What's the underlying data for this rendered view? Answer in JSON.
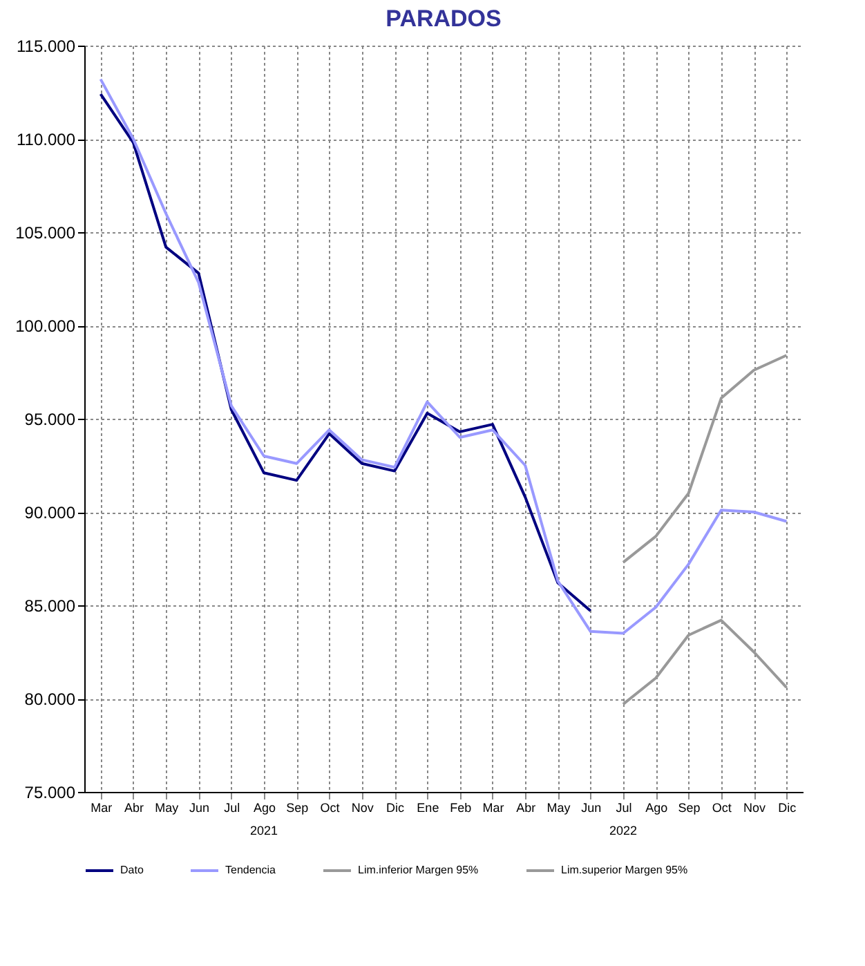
{
  "chart_data": {
    "type": "line",
    "title": "PARADOS",
    "categories": [
      "Mar",
      "Abr",
      "May",
      "Jun",
      "Jul",
      "Ago",
      "Sep",
      "Oct",
      "Nov",
      "Dic",
      "Ene",
      "Feb",
      "Mar",
      "Abr",
      "May",
      "Jun",
      "Jul",
      "Ago",
      "Sep",
      "Oct",
      "Nov",
      "Dic"
    ],
    "series": [
      {
        "name": "Dato",
        "color": "#000080",
        "values": [
          112400,
          109800,
          104200,
          102800,
          95500,
          92100,
          91700,
          94200,
          92600,
          92200,
          95300,
          94300,
          94700,
          90800,
          86200,
          84700,
          null,
          null,
          null,
          null,
          null,
          null
        ]
      },
      {
        "name": "Tendencia",
        "color": "#9999ff",
        "values": [
          113200,
          110000,
          106000,
          102300,
          95700,
          93000,
          92600,
          94400,
          92800,
          92400,
          95900,
          94000,
          94400,
          92500,
          86300,
          83600,
          83500,
          84900,
          87200,
          90100,
          90000,
          89500
        ]
      },
      {
        "name": "Lim.inferior Margen 95%",
        "color": "#999999",
        "values": [
          null,
          null,
          null,
          null,
          null,
          null,
          null,
          null,
          null,
          null,
          null,
          null,
          null,
          null,
          null,
          null,
          79700,
          81100,
          83400,
          84200,
          82500,
          80600
        ]
      },
      {
        "name": "Lim.superior Margen 95%",
        "color": "#999999",
        "values": [
          null,
          null,
          null,
          null,
          null,
          null,
          null,
          null,
          null,
          null,
          null,
          null,
          null,
          null,
          null,
          null,
          87300,
          88700,
          91000,
          96100,
          97600,
          98400
        ]
      }
    ],
    "ylim": [
      75000,
      115000
    ],
    "yticks": [
      {
        "value": 75000,
        "label": "75.000"
      },
      {
        "value": 80000,
        "label": "80.000"
      },
      {
        "value": 85000,
        "label": "85.000"
      },
      {
        "value": 90000,
        "label": "90.000"
      },
      {
        "value": 95000,
        "label": "95.000"
      },
      {
        "value": 100000,
        "label": "100.000"
      },
      {
        "value": 105000,
        "label": "105.000"
      },
      {
        "value": 110000,
        "label": "110.000"
      },
      {
        "value": 115000,
        "label": "115.000"
      }
    ],
    "annotations": [
      "2021",
      "2022"
    ],
    "grid": true,
    "legend": "bottom",
    "line_style": "solid",
    "marker": "none"
  }
}
